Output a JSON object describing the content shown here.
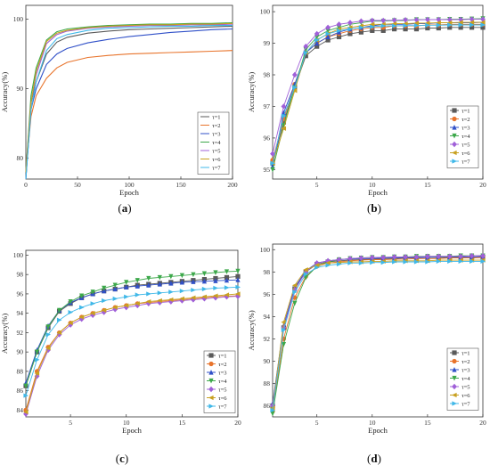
{
  "series_names": [
    "τ=1",
    "τ=2",
    "τ=3",
    "τ=4",
    "τ=5",
    "τ=6",
    "τ=7"
  ],
  "series_colors": [
    "#5a5a5a",
    "#e8742c",
    "#3050c8",
    "#3ca84a",
    "#a060d8",
    "#c8a020",
    "#40b8e8"
  ],
  "series_markers": [
    "square",
    "circle",
    "triangle-up",
    "triangle-down",
    "diamond",
    "triangle-left",
    "triangle-right"
  ],
  "chart_data": [
    {
      "id": "a",
      "caption": "a",
      "type": "line",
      "xlabel": "Epoch",
      "ylabel": "Accuracy(%)",
      "xlim": [
        0,
        200
      ],
      "ylim": [
        77,
        102
      ],
      "xticks": [
        0,
        50,
        100,
        150,
        200
      ],
      "yticks": [
        80,
        90,
        100
      ],
      "legend": "bottom-right",
      "markers": false,
      "series": [
        {
          "name": "τ=1",
          "x": [
            0,
            5,
            10,
            20,
            30,
            40,
            60,
            80,
            100,
            120,
            140,
            160,
            180,
            200
          ],
          "values": [
            77,
            88,
            91,
            95,
            96.7,
            97.4,
            98,
            98.3,
            98.5,
            98.6,
            98.7,
            98.8,
            98.9,
            99
          ]
        },
        {
          "name": "τ=2",
          "x": [
            0,
            5,
            10,
            20,
            30,
            40,
            60,
            80,
            100,
            120,
            140,
            160,
            180,
            200
          ],
          "values": [
            78,
            86,
            89,
            91.5,
            93,
            93.8,
            94.5,
            94.8,
            95,
            95.1,
            95.2,
            95.3,
            95.4,
            95.5
          ]
        },
        {
          "name": "τ=3",
          "x": [
            0,
            5,
            10,
            20,
            30,
            40,
            60,
            80,
            100,
            120,
            140,
            160,
            180,
            200
          ],
          "values": [
            77,
            87,
            90,
            93.5,
            95,
            95.8,
            96.6,
            97.1,
            97.5,
            97.8,
            98.1,
            98.3,
            98.5,
            98.6
          ]
        },
        {
          "name": "τ=4",
          "x": [
            0,
            5,
            10,
            20,
            30,
            40,
            60,
            80,
            100,
            120,
            140,
            160,
            180,
            200
          ],
          "values": [
            78,
            89,
            93,
            97,
            98.2,
            98.6,
            98.9,
            99.1,
            99.2,
            99.3,
            99.3,
            99.4,
            99.4,
            99.5
          ]
        },
        {
          "name": "τ=5",
          "x": [
            0,
            5,
            10,
            20,
            30,
            40,
            60,
            80,
            100,
            120,
            140,
            160,
            180,
            200
          ],
          "values": [
            78,
            88,
            92,
            96.5,
            97.8,
            98.3,
            98.7,
            98.9,
            99,
            99.1,
            99.1,
            99.2,
            99.2,
            99.3
          ]
        },
        {
          "name": "τ=6",
          "x": [
            0,
            5,
            10,
            20,
            30,
            40,
            60,
            80,
            100,
            120,
            140,
            160,
            180,
            200
          ],
          "values": [
            78,
            88,
            92.5,
            96.8,
            98,
            98.4,
            98.8,
            99,
            99.1,
            99.2,
            99.2,
            99.3,
            99.3,
            99.4
          ]
        },
        {
          "name": "τ=7",
          "x": [
            0,
            5,
            10,
            20,
            30,
            40,
            60,
            80,
            100,
            120,
            140,
            160,
            180,
            200
          ],
          "values": [
            77,
            87,
            91,
            95.5,
            97.2,
            97.8,
            98.4,
            98.7,
            98.8,
            98.9,
            99,
            99,
            99.1,
            99.1
          ]
        }
      ]
    },
    {
      "id": "b",
      "caption": "b",
      "type": "line",
      "xlabel": "Epoch",
      "ylabel": "Accuracy(%)",
      "xlim": [
        1,
        20
      ],
      "ylim": [
        94.7,
        100.2
      ],
      "xticks": [
        5,
        10,
        15,
        20
      ],
      "yticks": [
        95,
        96,
        97,
        98,
        99,
        100
      ],
      "legend": "bottom-right",
      "markers": true,
      "x": [
        1,
        2,
        3,
        4,
        5,
        6,
        7,
        8,
        9,
        10,
        11,
        12,
        13,
        14,
        15,
        16,
        17,
        18,
        19,
        20
      ],
      "series": [
        {
          "name": "τ=1",
          "values": [
            95.2,
            96.5,
            97.6,
            98.6,
            98.9,
            99.1,
            99.2,
            99.3,
            99.35,
            99.4,
            99.4,
            99.45,
            99.45,
            99.45,
            99.48,
            99.48,
            99.5,
            99.5,
            99.5,
            99.5
          ]
        },
        {
          "name": "τ=2",
          "values": [
            95.3,
            96.6,
            97.7,
            98.7,
            99,
            99.2,
            99.3,
            99.4,
            99.45,
            99.5,
            99.5,
            99.55,
            99.55,
            99.55,
            99.58,
            99.58,
            99.6,
            99.6,
            99.6,
            99.6
          ]
        },
        {
          "name": "τ=3",
          "values": [
            95.1,
            96.8,
            97.7,
            98.7,
            99,
            99.2,
            99.35,
            99.45,
            99.5,
            99.55,
            99.6,
            99.6,
            99.6,
            99.62,
            99.62,
            99.65,
            99.65,
            99.65,
            99.65,
            99.66
          ]
        },
        {
          "name": "τ=4",
          "values": [
            95,
            96.4,
            97.6,
            98.8,
            99.2,
            99.4,
            99.5,
            99.6,
            99.65,
            99.7,
            99.7,
            99.72,
            99.72,
            99.75,
            99.75,
            99.75,
            99.76,
            99.76,
            99.77,
            99.78
          ]
        },
        {
          "name": "τ=5",
          "values": [
            95.5,
            97,
            98,
            98.9,
            99.3,
            99.5,
            99.6,
            99.65,
            99.7,
            99.72,
            99.72,
            99.73,
            99.74,
            99.74,
            99.75,
            99.75,
            99.75,
            99.75,
            99.76,
            99.76
          ]
        },
        {
          "name": "τ=6",
          "values": [
            95.2,
            96.3,
            97.5,
            98.7,
            99.1,
            99.3,
            99.45,
            99.5,
            99.55,
            99.6,
            99.6,
            99.62,
            99.62,
            99.64,
            99.64,
            99.65,
            99.65,
            99.66,
            99.66,
            99.66
          ]
        },
        {
          "name": "τ=7",
          "values": [
            95.2,
            96.7,
            97.6,
            98.7,
            99.1,
            99.3,
            99.4,
            99.45,
            99.5,
            99.52,
            99.55,
            99.55,
            99.56,
            99.56,
            99.57,
            99.57,
            99.58,
            99.58,
            99.58,
            99.58
          ]
        }
      ]
    },
    {
      "id": "c",
      "caption": "c",
      "type": "line",
      "xlabel": "Epoch",
      "ylabel": "Accuracy(%)",
      "xlim": [
        1,
        20
      ],
      "ylim": [
        83.3,
        100.5
      ],
      "xticks": [
        5,
        10,
        15,
        20
      ],
      "yticks": [
        84,
        86,
        88,
        90,
        92,
        94,
        96,
        98,
        100
      ],
      "legend": "bottom-right",
      "markers": true,
      "x": [
        1,
        2,
        3,
        4,
        5,
        6,
        7,
        8,
        9,
        10,
        11,
        12,
        13,
        14,
        15,
        16,
        17,
        18,
        19,
        20
      ],
      "series": [
        {
          "name": "τ=1",
          "values": [
            86.5,
            90,
            92.5,
            94.2,
            95,
            95.6,
            96,
            96.3,
            96.5,
            96.7,
            96.9,
            97,
            97.1,
            97.2,
            97.3,
            97.4,
            97.5,
            97.6,
            97.7,
            97.8
          ]
        },
        {
          "name": "τ=2",
          "values": [
            84,
            88,
            90.5,
            92,
            93,
            93.6,
            94,
            94.3,
            94.6,
            94.8,
            95,
            95.1,
            95.2,
            95.3,
            95.4,
            95.5,
            95.6,
            95.7,
            95.75,
            95.8
          ]
        },
        {
          "name": "τ=3",
          "values": [
            86.8,
            90.2,
            92.7,
            94.3,
            95.1,
            95.6,
            96,
            96.3,
            96.5,
            96.7,
            96.8,
            96.9,
            97,
            97.1,
            97.2,
            97.25,
            97.3,
            97.35,
            97.4,
            97.45
          ]
        },
        {
          "name": "τ=4",
          "values": [
            86.5,
            90,
            92.6,
            94.3,
            95.2,
            95.8,
            96.2,
            96.6,
            96.9,
            97.2,
            97.4,
            97.6,
            97.7,
            97.8,
            97.9,
            98,
            98.1,
            98.2,
            98.3,
            98.35
          ]
        },
        {
          "name": "τ=5",
          "values": [
            83.6,
            87.5,
            90.2,
            91.8,
            92.8,
            93.4,
            93.8,
            94.1,
            94.4,
            94.6,
            94.8,
            95,
            95.1,
            95.2,
            95.3,
            95.4,
            95.5,
            95.6,
            95.7,
            95.75
          ]
        },
        {
          "name": "τ=6",
          "values": [
            83.8,
            87.8,
            90.4,
            92,
            93,
            93.6,
            94,
            94.3,
            94.6,
            94.8,
            95,
            95.2,
            95.3,
            95.4,
            95.5,
            95.6,
            95.7,
            95.8,
            95.9,
            96
          ]
        },
        {
          "name": "τ=7",
          "values": [
            85.5,
            89.2,
            91.8,
            93.3,
            94.1,
            94.6,
            95,
            95.3,
            95.5,
            95.7,
            95.9,
            96,
            96.1,
            96.2,
            96.3,
            96.4,
            96.5,
            96.6,
            96.65,
            96.7
          ]
        }
      ]
    },
    {
      "id": "d",
      "caption": "d",
      "type": "line",
      "xlabel": "Epoch",
      "ylabel": "Accuracy(%)",
      "xlim": [
        1,
        20
      ],
      "ylim": [
        85,
        100.5
      ],
      "xticks": [
        5,
        10,
        15,
        20
      ],
      "yticks": [
        86,
        88,
        90,
        92,
        94,
        96,
        98,
        100
      ],
      "legend": "bottom-right",
      "markers": true,
      "x": [
        1,
        2,
        3,
        4,
        5,
        6,
        7,
        8,
        9,
        10,
        11,
        12,
        13,
        14,
        15,
        16,
        17,
        18,
        19,
        20
      ],
      "series": [
        {
          "name": "τ=1",
          "values": [
            86,
            93,
            96.5,
            98,
            98.7,
            98.9,
            99,
            99.05,
            99.1,
            99.15,
            99.2,
            99.2,
            99.25,
            99.25,
            99.3,
            99.3,
            99.3,
            99.3,
            99.35,
            99.35
          ]
        },
        {
          "name": "τ=2",
          "values": [
            85.5,
            92,
            95.7,
            97.6,
            98.5,
            98.8,
            98.9,
            99,
            99.05,
            99.1,
            99.1,
            99.15,
            99.15,
            99.2,
            99.2,
            99.2,
            99.25,
            99.25,
            99.25,
            99.3
          ]
        },
        {
          "name": "τ=3",
          "values": [
            86.2,
            93.2,
            96.6,
            98.1,
            98.8,
            99,
            99.1,
            99.15,
            99.2,
            99.2,
            99.25,
            99.25,
            99.3,
            99.3,
            99.3,
            99.35,
            99.35,
            99.35,
            99.35,
            99.4
          ]
        },
        {
          "name": "τ=4",
          "values": [
            85.3,
            91.5,
            95.2,
            97.5,
            98.5,
            98.9,
            99.1,
            99.2,
            99.25,
            99.3,
            99.3,
            99.35,
            99.35,
            99.4,
            99.4,
            99.4,
            99.4,
            99.45,
            99.45,
            99.45
          ]
        },
        {
          "name": "τ=5",
          "values": [
            86,
            93,
            96.4,
            98,
            98.8,
            99,
            99.1,
            99.2,
            99.25,
            99.3,
            99.3,
            99.35,
            99.35,
            99.35,
            99.4,
            99.4,
            99.4,
            99.4,
            99.45,
            99.45
          ]
        },
        {
          "name": "τ=6",
          "values": [
            85.8,
            93.5,
            96.8,
            98.2,
            98.6,
            98.8,
            98.85,
            98.9,
            98.9,
            98.95,
            98.95,
            99,
            99,
            99,
            99,
            99.05,
            99.05,
            99.05,
            99.05,
            99.05
          ]
        },
        {
          "name": "τ=7",
          "values": [
            85.6,
            92.8,
            96.2,
            97.8,
            98.4,
            98.6,
            98.7,
            98.8,
            98.8,
            98.85,
            98.85,
            98.9,
            98.9,
            98.9,
            98.9,
            98.95,
            98.95,
            98.95,
            98.95,
            98.95
          ]
        }
      ]
    }
  ]
}
